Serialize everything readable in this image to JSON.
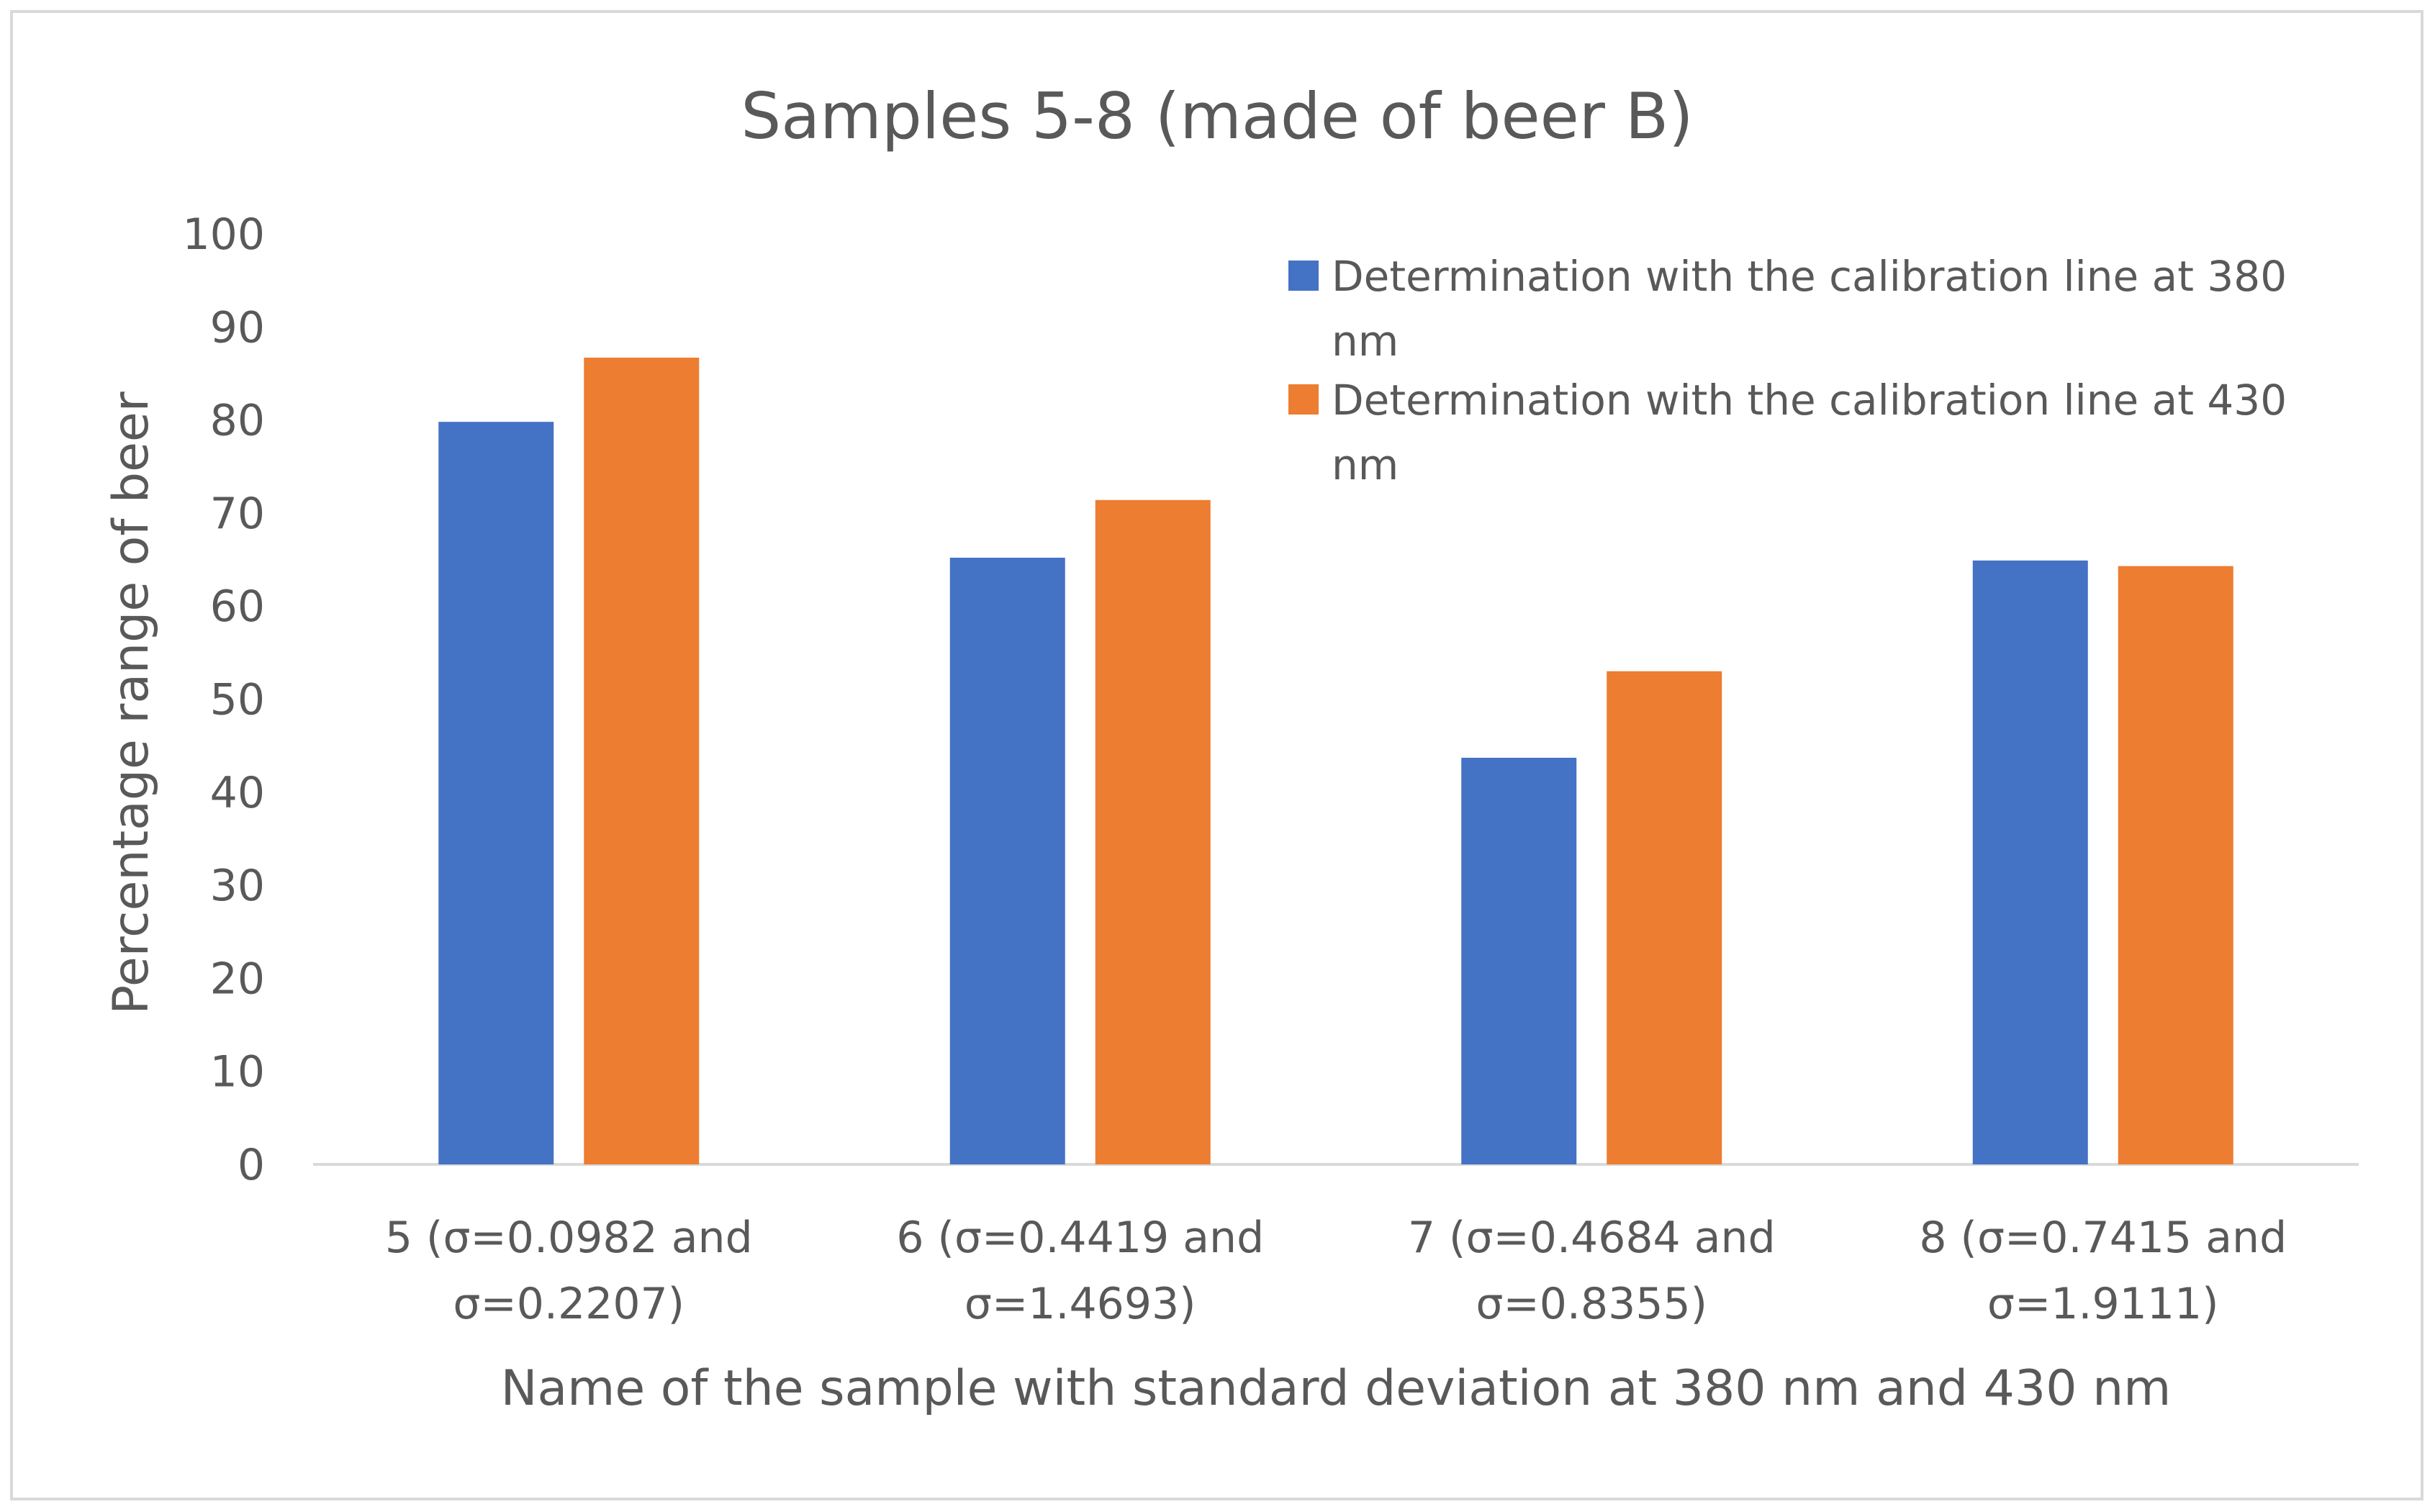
{
  "chart_data": {
    "type": "bar",
    "title": "Samples 5-8 (made of beer B)",
    "xlabel": "Name of the sample with standard deviation at 380 nm and 430 nm",
    "ylabel": "Percentage range of beer",
    "ylim": [
      0,
      100
    ],
    "yticks": [
      0,
      10,
      20,
      30,
      40,
      50,
      60,
      70,
      80,
      90,
      100
    ],
    "grid": false,
    "legend_position": "top-right",
    "categories": [
      [
        "5 (σ=0.0982 and",
        "σ=0.2207)"
      ],
      [
        "6 (σ=0.4419 and",
        "σ=1.4693)"
      ],
      [
        "7 (σ=0.4684 and",
        "σ=0.8355)"
      ],
      [
        "8 (σ=0.7415 and",
        "σ=1.9111)"
      ]
    ],
    "series": [
      {
        "name_lines": [
          "Determination with the calibration line at 380",
          "nm"
        ],
        "color": "#4472c4",
        "values": [
          79.8,
          65.2,
          43.7,
          64.9
        ]
      },
      {
        "name_lines": [
          "Determination with the calibration line at 430",
          "nm"
        ],
        "color": "#ed7d31",
        "values": [
          86.7,
          71.4,
          53.0,
          64.3
        ]
      }
    ]
  }
}
